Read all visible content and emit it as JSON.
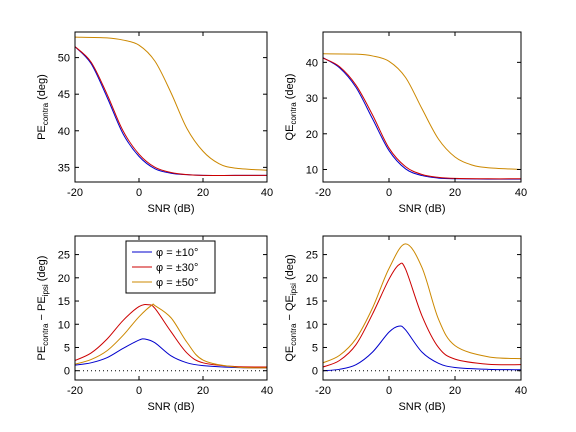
{
  "chart_data": [
    {
      "type": "line",
      "id": "pe-contra",
      "xlabel": "SNR (dB)",
      "ylabel": {
        "main": "PE",
        "sub": "contra",
        "rest": " (deg)"
      },
      "xlim": [
        -20,
        40
      ],
      "ylim": [
        33,
        53.5
      ],
      "xticks": [
        -20,
        0,
        20,
        40
      ],
      "yticks": [
        35,
        40,
        45,
        50
      ],
      "zero_line": false,
      "series": [
        {
          "color": "#0000cc",
          "x": [
            -20,
            -15,
            -10,
            -5,
            0,
            5,
            10,
            15,
            20,
            30,
            40
          ],
          "y": [
            51.5,
            49.2,
            44.6,
            39.6,
            36.5,
            34.8,
            34.2,
            34.0,
            33.9,
            33.9,
            33.9
          ]
        },
        {
          "color": "#cc0000",
          "x": [
            -20,
            -15,
            -10,
            -5,
            0,
            5,
            10,
            15,
            20,
            30,
            40
          ],
          "y": [
            51.5,
            49.4,
            45.0,
            40.0,
            36.8,
            35.0,
            34.3,
            34.0,
            33.9,
            33.9,
            33.9
          ]
        },
        {
          "color": "#cc8800",
          "x": [
            -20,
            -10,
            -5,
            0,
            5,
            10,
            15,
            20,
            25,
            30,
            40
          ],
          "y": [
            52.8,
            52.7,
            52.4,
            51.7,
            49.5,
            45.2,
            40.3,
            37.2,
            35.5,
            34.9,
            34.6
          ]
        }
      ]
    },
    {
      "type": "line",
      "id": "qe-contra",
      "xlabel": "SNR (dB)",
      "ylabel": {
        "main": "QE",
        "sub": "contra",
        "rest": " (deg)"
      },
      "xlim": [
        -20,
        40
      ],
      "ylim": [
        6.5,
        48.5
      ],
      "xticks": [
        -20,
        0,
        20,
        40
      ],
      "yticks": [
        10,
        20,
        30,
        40
      ],
      "zero_line": false,
      "series": [
        {
          "color": "#0000cc",
          "x": [
            -20,
            -15,
            -10,
            -5,
            0,
            5,
            10,
            15,
            20,
            30,
            40
          ],
          "y": [
            41.3,
            38.5,
            33.0,
            24.2,
            15.3,
            10.2,
            8.3,
            7.6,
            7.4,
            7.3,
            7.3
          ]
        },
        {
          "color": "#cc0000",
          "x": [
            -20,
            -15,
            -10,
            -5,
            0,
            5,
            10,
            15,
            20,
            30,
            40
          ],
          "y": [
            41.2,
            38.8,
            33.6,
            25.3,
            16.0,
            10.8,
            8.6,
            7.8,
            7.5,
            7.4,
            7.4
          ]
        },
        {
          "color": "#cc8800",
          "x": [
            -20,
            -10,
            -5,
            0,
            5,
            10,
            15,
            20,
            25,
            30,
            40
          ],
          "y": [
            42.4,
            42.3,
            41.8,
            40.3,
            35.8,
            27.0,
            18.5,
            13.5,
            11.3,
            10.5,
            10.0
          ]
        }
      ]
    },
    {
      "type": "line",
      "id": "pe-diff",
      "xlabel": "SNR (dB)",
      "ylabel": {
        "main": "PE",
        "sub": "contra",
        "mid": " − PE",
        "sub2": "ipsi",
        "rest": " (deg)"
      },
      "xlim": [
        -20,
        40
      ],
      "ylim": [
        -2,
        29
      ],
      "xticks": [
        -20,
        0,
        20,
        40
      ],
      "yticks": [
        0,
        5,
        10,
        15,
        20,
        25
      ],
      "zero_line": true,
      "legend": {
        "placement": "top-left",
        "entries": [
          "φ = ±10°",
          "φ = ±30°",
          "φ = ±50°"
        ]
      },
      "series": [
        {
          "name": "φ = ±10°",
          "color": "#0000cc",
          "x": [
            -20,
            -15,
            -10,
            -5,
            0,
            2,
            5,
            10,
            15,
            20,
            30,
            40
          ],
          "y": [
            1.2,
            1.7,
            2.8,
            4.8,
            6.6,
            6.8,
            6.0,
            3.2,
            1.7,
            1.1,
            0.7,
            0.6
          ]
        },
        {
          "name": "φ = ±30°",
          "color": "#cc0000",
          "x": [
            -20,
            -15,
            -10,
            -5,
            0,
            3,
            5,
            10,
            15,
            20,
            30,
            40
          ],
          "y": [
            2.2,
            3.8,
            6.8,
            10.8,
            13.8,
            14.2,
            13.4,
            8.4,
            3.8,
            1.7,
            0.9,
            0.8
          ]
        },
        {
          "name": "φ = ±50°",
          "color": "#cc8800",
          "x": [
            -20,
            -15,
            -10,
            -5,
            0,
            4,
            5,
            10,
            15,
            20,
            30,
            40
          ],
          "y": [
            1.4,
            2.4,
            4.3,
            7.6,
            11.6,
            14.1,
            14.0,
            11.4,
            6.1,
            2.3,
            0.8,
            0.6
          ]
        }
      ]
    },
    {
      "type": "line",
      "id": "qe-diff",
      "xlabel": "SNR (dB)",
      "ylabel": {
        "main": "QE",
        "sub": "contra",
        "mid": " − QE",
        "sub2": "ipsi",
        "rest": " (deg)"
      },
      "xlim": [
        -20,
        40
      ],
      "ylim": [
        -2,
        29
      ],
      "xticks": [
        -20,
        0,
        20,
        40
      ],
      "yticks": [
        0,
        5,
        10,
        15,
        20,
        25
      ],
      "zero_line": true,
      "series": [
        {
          "color": "#0000cc",
          "x": [
            -20,
            -15,
            -10,
            -5,
            0,
            3,
            5,
            10,
            15,
            20,
            30,
            40
          ],
          "y": [
            0.0,
            0.3,
            1.3,
            4.0,
            8.3,
            9.6,
            8.8,
            4.0,
            1.6,
            0.7,
            0.3,
            0.2
          ]
        },
        {
          "color": "#cc0000",
          "x": [
            -20,
            -15,
            -10,
            -5,
            0,
            3,
            5,
            10,
            15,
            20,
            30,
            40
          ],
          "y": [
            0.8,
            2.2,
            5.6,
            12.2,
            19.7,
            22.8,
            21.9,
            11.8,
            5.0,
            2.5,
            1.4,
            1.3
          ]
        },
        {
          "color": "#cc8800",
          "x": [
            -20,
            -15,
            -10,
            -5,
            0,
            5,
            10,
            15,
            20,
            30,
            40
          ],
          "y": [
            1.7,
            3.3,
            6.9,
            13.5,
            22.0,
            27.3,
            22.2,
            11.1,
            5.4,
            3.0,
            2.6
          ]
        }
      ]
    }
  ]
}
